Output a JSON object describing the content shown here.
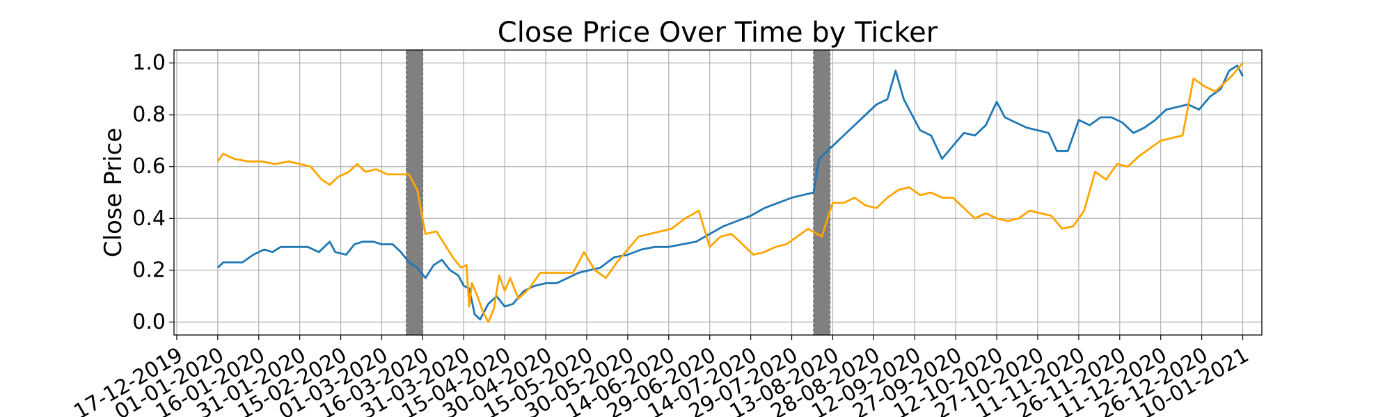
{
  "chart_data": {
    "type": "line",
    "title": "Close Price Over Time by Ticker",
    "xlabel": "",
    "ylabel": "Close Price",
    "xlim": [
      "2019-12-16",
      "2021-01-17"
    ],
    "ylim": [
      -0.05,
      1.05
    ],
    "grid": true,
    "legend": "none",
    "x_tick_labels": [
      "17-12-2019",
      "01-01-2020",
      "16-01-2020",
      "31-01-2020",
      "15-02-2020",
      "01-03-2020",
      "16-03-2020",
      "31-03-2020",
      "15-04-2020",
      "30-04-2020",
      "15-05-2020",
      "30-05-2020",
      "14-06-2020",
      "29-06-2020",
      "14-07-2020",
      "29-07-2020",
      "13-08-2020",
      "28-08-2020",
      "12-09-2020",
      "27-09-2020",
      "12-10-2020",
      "27-10-2020",
      "11-11-2020",
      "26-11-2020",
      "11-12-2020",
      "26-12-2020",
      "10-01-2021"
    ],
    "y_tick_labels": [
      "0.0",
      "0.2",
      "0.4",
      "0.6",
      "0.8",
      "1.0"
    ],
    "shaded_regions": [
      {
        "start": "2020-03-10",
        "end": "2020-03-16"
      },
      {
        "start": "2020-08-06",
        "end": "2020-08-12"
      }
    ],
    "series": [
      {
        "color": "#1f77b4",
        "points": [
          [
            "2020-01-01",
            0.21
          ],
          [
            "2020-01-03",
            0.23
          ],
          [
            "2020-01-07",
            0.23
          ],
          [
            "2020-01-10",
            0.23
          ],
          [
            "2020-01-14",
            0.26
          ],
          [
            "2020-01-18",
            0.28
          ],
          [
            "2020-01-21",
            0.27
          ],
          [
            "2020-01-24",
            0.29
          ],
          [
            "2020-01-29",
            0.29
          ],
          [
            "2020-02-03",
            0.29
          ],
          [
            "2020-02-07",
            0.27
          ],
          [
            "2020-02-11",
            0.31
          ],
          [
            "2020-02-13",
            0.27
          ],
          [
            "2020-02-17",
            0.26
          ],
          [
            "2020-02-20",
            0.3
          ],
          [
            "2020-02-23",
            0.31
          ],
          [
            "2020-02-27",
            0.31
          ],
          [
            "2020-03-01",
            0.3
          ],
          [
            "2020-03-05",
            0.3
          ],
          [
            "2020-03-08",
            0.27
          ],
          [
            "2020-03-11",
            0.23
          ],
          [
            "2020-03-14",
            0.21
          ],
          [
            "2020-03-17",
            0.17
          ],
          [
            "2020-03-20",
            0.22
          ],
          [
            "2020-03-23",
            0.24
          ],
          [
            "2020-03-26",
            0.2
          ],
          [
            "2020-03-29",
            0.18
          ],
          [
            "2020-03-31",
            0.14
          ],
          [
            "2020-04-02",
            0.13
          ],
          [
            "2020-04-04",
            0.03
          ],
          [
            "2020-04-06",
            0.01
          ],
          [
            "2020-04-09",
            0.07
          ],
          [
            "2020-04-12",
            0.1
          ],
          [
            "2020-04-15",
            0.06
          ],
          [
            "2020-04-18",
            0.07
          ],
          [
            "2020-04-22",
            0.12
          ],
          [
            "2020-04-26",
            0.14
          ],
          [
            "2020-04-30",
            0.15
          ],
          [
            "2020-05-04",
            0.15
          ],
          [
            "2020-05-08",
            0.17
          ],
          [
            "2020-05-12",
            0.19
          ],
          [
            "2020-05-16",
            0.2
          ],
          [
            "2020-05-20",
            0.21
          ],
          [
            "2020-05-25",
            0.25
          ],
          [
            "2020-05-30",
            0.26
          ],
          [
            "2020-06-04",
            0.28
          ],
          [
            "2020-06-09",
            0.29
          ],
          [
            "2020-06-14",
            0.29
          ],
          [
            "2020-06-19",
            0.3
          ],
          [
            "2020-06-24",
            0.31
          ],
          [
            "2020-06-29",
            0.34
          ],
          [
            "2020-07-04",
            0.37
          ],
          [
            "2020-07-09",
            0.39
          ],
          [
            "2020-07-14",
            0.41
          ],
          [
            "2020-07-19",
            0.44
          ],
          [
            "2020-07-24",
            0.46
          ],
          [
            "2020-07-29",
            0.48
          ],
          [
            "2020-08-02",
            0.49
          ],
          [
            "2020-08-06",
            0.5
          ],
          [
            "2020-08-08",
            0.63
          ],
          [
            "2020-08-11",
            0.66
          ],
          [
            "2020-08-14",
            0.69
          ],
          [
            "2020-08-17",
            0.72
          ],
          [
            "2020-08-21",
            0.76
          ],
          [
            "2020-08-25",
            0.8
          ],
          [
            "2020-08-29",
            0.84
          ],
          [
            "2020-09-02",
            0.86
          ],
          [
            "2020-09-05",
            0.97
          ],
          [
            "2020-09-08",
            0.86
          ],
          [
            "2020-09-11",
            0.8
          ],
          [
            "2020-09-14",
            0.74
          ],
          [
            "2020-09-18",
            0.72
          ],
          [
            "2020-09-22",
            0.63
          ],
          [
            "2020-09-26",
            0.68
          ],
          [
            "2020-09-30",
            0.73
          ],
          [
            "2020-10-04",
            0.72
          ],
          [
            "2020-10-08",
            0.76
          ],
          [
            "2020-10-12",
            0.85
          ],
          [
            "2020-10-15",
            0.79
          ],
          [
            "2020-10-19",
            0.77
          ],
          [
            "2020-10-23",
            0.75
          ],
          [
            "2020-10-27",
            0.74
          ],
          [
            "2020-10-31",
            0.73
          ],
          [
            "2020-11-03",
            0.66
          ],
          [
            "2020-11-07",
            0.66
          ],
          [
            "2020-11-11",
            0.78
          ],
          [
            "2020-11-15",
            0.76
          ],
          [
            "2020-11-19",
            0.79
          ],
          [
            "2020-11-23",
            0.79
          ],
          [
            "2020-11-27",
            0.77
          ],
          [
            "2020-12-01",
            0.73
          ],
          [
            "2020-12-05",
            0.75
          ],
          [
            "2020-12-09",
            0.78
          ],
          [
            "2020-12-13",
            0.82
          ],
          [
            "2020-12-17",
            0.83
          ],
          [
            "2020-12-21",
            0.84
          ],
          [
            "2020-12-25",
            0.82
          ],
          [
            "2020-12-29",
            0.87
          ],
          [
            "2021-01-02",
            0.9
          ],
          [
            "2021-01-05",
            0.97
          ],
          [
            "2021-01-08",
            0.99
          ],
          [
            "2021-01-10",
            0.95
          ]
        ]
      },
      {
        "color": "#ffa500",
        "points": [
          [
            "2020-01-01",
            0.62
          ],
          [
            "2020-01-03",
            0.65
          ],
          [
            "2020-01-07",
            0.63
          ],
          [
            "2020-01-12",
            0.62
          ],
          [
            "2020-01-17",
            0.62
          ],
          [
            "2020-01-22",
            0.61
          ],
          [
            "2020-01-27",
            0.62
          ],
          [
            "2020-01-31",
            0.61
          ],
          [
            "2020-02-04",
            0.6
          ],
          [
            "2020-02-08",
            0.55
          ],
          [
            "2020-02-11",
            0.53
          ],
          [
            "2020-02-14",
            0.56
          ],
          [
            "2020-02-18",
            0.58
          ],
          [
            "2020-02-21",
            0.61
          ],
          [
            "2020-02-24",
            0.58
          ],
          [
            "2020-02-28",
            0.59
          ],
          [
            "2020-03-03",
            0.57
          ],
          [
            "2020-03-07",
            0.57
          ],
          [
            "2020-03-09",
            0.57
          ],
          [
            "2020-03-11",
            0.57
          ],
          [
            "2020-03-14",
            0.51
          ],
          [
            "2020-03-17",
            0.34
          ],
          [
            "2020-03-21",
            0.35
          ],
          [
            "2020-03-24",
            0.3
          ],
          [
            "2020-03-27",
            0.25
          ],
          [
            "2020-03-30",
            0.21
          ],
          [
            "2020-04-01",
            0.22
          ],
          [
            "2020-04-02",
            0.06
          ],
          [
            "2020-04-03",
            0.15
          ],
          [
            "2020-04-05",
            0.1
          ],
          [
            "2020-04-07",
            0.04
          ],
          [
            "2020-04-09",
            0.0
          ],
          [
            "2020-04-11",
            0.05
          ],
          [
            "2020-04-13",
            0.18
          ],
          [
            "2020-04-15",
            0.12
          ],
          [
            "2020-04-17",
            0.17
          ],
          [
            "2020-04-20",
            0.09
          ],
          [
            "2020-04-24",
            0.13
          ],
          [
            "2020-04-28",
            0.19
          ],
          [
            "2020-05-02",
            0.19
          ],
          [
            "2020-05-06",
            0.19
          ],
          [
            "2020-05-10",
            0.19
          ],
          [
            "2020-05-14",
            0.27
          ],
          [
            "2020-05-18",
            0.2
          ],
          [
            "2020-05-22",
            0.17
          ],
          [
            "2020-05-26",
            0.23
          ],
          [
            "2020-05-30",
            0.28
          ],
          [
            "2020-06-03",
            0.33
          ],
          [
            "2020-06-07",
            0.34
          ],
          [
            "2020-06-11",
            0.35
          ],
          [
            "2020-06-15",
            0.36
          ],
          [
            "2020-06-20",
            0.4
          ],
          [
            "2020-06-25",
            0.43
          ],
          [
            "2020-06-29",
            0.29
          ],
          [
            "2020-07-03",
            0.33
          ],
          [
            "2020-07-07",
            0.34
          ],
          [
            "2020-07-11",
            0.3
          ],
          [
            "2020-07-15",
            0.26
          ],
          [
            "2020-07-19",
            0.27
          ],
          [
            "2020-07-23",
            0.29
          ],
          [
            "2020-07-27",
            0.3
          ],
          [
            "2020-07-31",
            0.33
          ],
          [
            "2020-08-04",
            0.36
          ],
          [
            "2020-08-09",
            0.33
          ],
          [
            "2020-08-13",
            0.46
          ],
          [
            "2020-08-17",
            0.46
          ],
          [
            "2020-08-21",
            0.48
          ],
          [
            "2020-08-25",
            0.45
          ],
          [
            "2020-08-29",
            0.44
          ],
          [
            "2020-09-02",
            0.48
          ],
          [
            "2020-09-06",
            0.51
          ],
          [
            "2020-09-10",
            0.52
          ],
          [
            "2020-09-14",
            0.49
          ],
          [
            "2020-09-18",
            0.5
          ],
          [
            "2020-09-22",
            0.48
          ],
          [
            "2020-09-26",
            0.48
          ],
          [
            "2020-09-30",
            0.44
          ],
          [
            "2020-10-04",
            0.4
          ],
          [
            "2020-10-08",
            0.42
          ],
          [
            "2020-10-12",
            0.4
          ],
          [
            "2020-10-16",
            0.39
          ],
          [
            "2020-10-20",
            0.4
          ],
          [
            "2020-10-24",
            0.43
          ],
          [
            "2020-10-28",
            0.42
          ],
          [
            "2020-11-01",
            0.41
          ],
          [
            "2020-11-05",
            0.36
          ],
          [
            "2020-11-09",
            0.37
          ],
          [
            "2020-11-13",
            0.43
          ],
          [
            "2020-11-17",
            0.58
          ],
          [
            "2020-11-21",
            0.55
          ],
          [
            "2020-11-25",
            0.61
          ],
          [
            "2020-11-29",
            0.6
          ],
          [
            "2020-12-03",
            0.64
          ],
          [
            "2020-12-07",
            0.67
          ],
          [
            "2020-12-11",
            0.7
          ],
          [
            "2020-12-15",
            0.71
          ],
          [
            "2020-12-19",
            0.72
          ],
          [
            "2020-12-23",
            0.94
          ],
          [
            "2020-12-27",
            0.91
          ],
          [
            "2020-12-31",
            0.89
          ],
          [
            "2021-01-03",
            0.92
          ],
          [
            "2021-01-06",
            0.95
          ],
          [
            "2021-01-10",
            1.0
          ]
        ]
      }
    ]
  }
}
